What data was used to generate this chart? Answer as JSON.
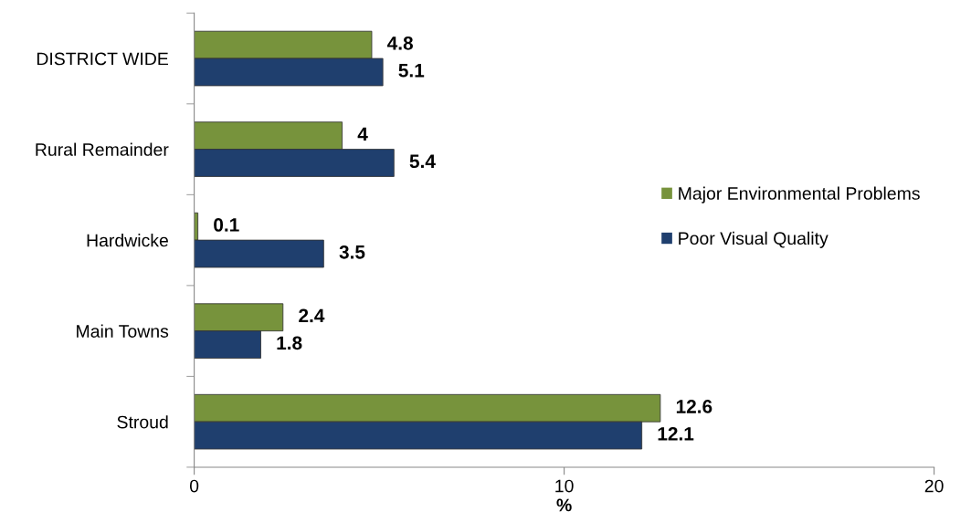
{
  "chart_data": {
    "type": "bar",
    "orientation": "horizontal",
    "xlabel": "%",
    "categories": [
      "DISTRICT WIDE",
      "Rural Remainder",
      "Hardwicke",
      "Main Towns",
      "Stroud"
    ],
    "series": [
      {
        "name": "Major Environmental Problems",
        "color": "#77933c",
        "values": [
          4.8,
          4,
          0.1,
          2.4,
          12.6
        ]
      },
      {
        "name": "Poor Visual Quality",
        "color": "#1f3f6e",
        "values": [
          5.1,
          5.4,
          3.5,
          1.8,
          12.1
        ]
      }
    ],
    "xlim": [
      0,
      20
    ],
    "xticks": [
      0,
      10,
      20
    ],
    "data_labels": true,
    "legend": "right",
    "grid": false
  }
}
